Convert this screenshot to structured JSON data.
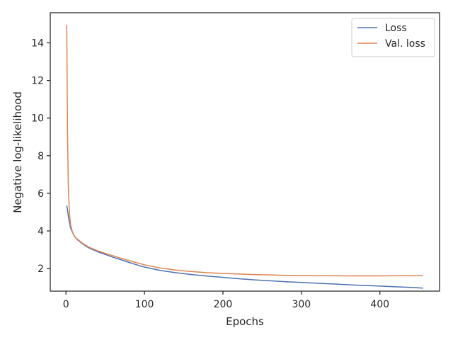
{
  "chart_data": {
    "type": "line",
    "xlabel": "Epochs",
    "ylabel": "Negative log-likelihood",
    "xlim": [
      -20,
      476
    ],
    "ylim": [
      0.8,
      15.6
    ],
    "xticks": [
      0,
      100,
      200,
      300,
      400
    ],
    "yticks": [
      2,
      4,
      6,
      8,
      10,
      12,
      14
    ],
    "grid": false,
    "legend_position": "top-right",
    "series": [
      {
        "name": "Loss",
        "color": "#4c72b0",
        "points": [
          [
            1,
            5.35
          ],
          [
            2,
            5.1
          ],
          [
            3,
            4.8
          ],
          [
            4,
            4.55
          ],
          [
            5,
            4.35
          ],
          [
            6,
            4.15
          ],
          [
            8,
            3.95
          ],
          [
            10,
            3.78
          ],
          [
            12,
            3.65
          ],
          [
            15,
            3.52
          ],
          [
            20,
            3.35
          ],
          [
            25,
            3.2
          ],
          [
            30,
            3.08
          ],
          [
            40,
            2.9
          ],
          [
            50,
            2.75
          ],
          [
            60,
            2.6
          ],
          [
            70,
            2.47
          ],
          [
            80,
            2.33
          ],
          [
            90,
            2.2
          ],
          [
            100,
            2.08
          ],
          [
            120,
            1.9
          ],
          [
            140,
            1.78
          ],
          [
            160,
            1.68
          ],
          [
            180,
            1.6
          ],
          [
            200,
            1.53
          ],
          [
            220,
            1.46
          ],
          [
            240,
            1.4
          ],
          [
            260,
            1.35
          ],
          [
            280,
            1.3
          ],
          [
            300,
            1.26
          ],
          [
            320,
            1.22
          ],
          [
            340,
            1.18
          ],
          [
            360,
            1.14
          ],
          [
            380,
            1.1
          ],
          [
            400,
            1.07
          ],
          [
            420,
            1.03
          ],
          [
            440,
            1.0
          ],
          [
            455,
            0.96
          ]
        ]
      },
      {
        "name": "Val. loss",
        "color": "#dd8452",
        "points": [
          [
            1,
            14.95
          ],
          [
            2,
            9.2
          ],
          [
            3,
            6.4
          ],
          [
            4,
            5.3
          ],
          [
            5,
            4.7
          ],
          [
            6,
            4.3
          ],
          [
            8,
            3.98
          ],
          [
            10,
            3.78
          ],
          [
            12,
            3.65
          ],
          [
            15,
            3.55
          ],
          [
            20,
            3.38
          ],
          [
            25,
            3.24
          ],
          [
            30,
            3.12
          ],
          [
            40,
            2.95
          ],
          [
            50,
            2.81
          ],
          [
            60,
            2.68
          ],
          [
            70,
            2.55
          ],
          [
            80,
            2.43
          ],
          [
            90,
            2.31
          ],
          [
            100,
            2.2
          ],
          [
            120,
            2.03
          ],
          [
            140,
            1.92
          ],
          [
            160,
            1.84
          ],
          [
            180,
            1.78
          ],
          [
            200,
            1.74
          ],
          [
            220,
            1.71
          ],
          [
            240,
            1.68
          ],
          [
            260,
            1.66
          ],
          [
            280,
            1.64
          ],
          [
            300,
            1.63
          ],
          [
            320,
            1.62
          ],
          [
            340,
            1.62
          ],
          [
            360,
            1.61
          ],
          [
            380,
            1.61
          ],
          [
            400,
            1.61
          ],
          [
            420,
            1.62
          ],
          [
            440,
            1.62
          ],
          [
            455,
            1.64
          ]
        ]
      }
    ]
  }
}
